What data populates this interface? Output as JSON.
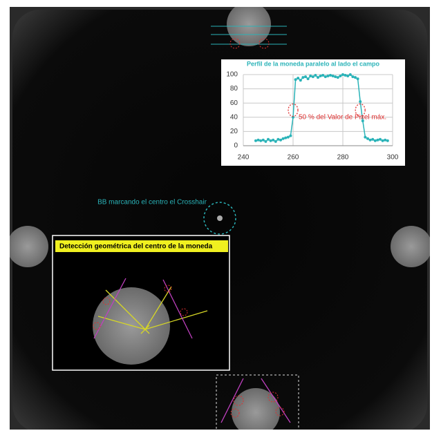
{
  "annotations": {
    "bb_label": "BB  marcando el centro el Crosshair",
    "detection_label": "Detección geométrica del centro de la moneda"
  },
  "chart_data": {
    "type": "line",
    "title": "Perfil de la moneda paralelo al lado el campo",
    "annotation": "50 % del  Valor de Pixel máx.",
    "x": [
      245,
      246,
      247,
      248,
      249,
      250,
      251,
      252,
      253,
      254,
      255,
      256,
      257,
      258,
      259,
      260,
      261,
      262,
      263,
      264,
      265,
      266,
      267,
      268,
      269,
      270,
      271,
      272,
      273,
      274,
      275,
      276,
      277,
      278,
      279,
      280,
      281,
      282,
      283,
      284,
      285,
      286,
      287,
      288,
      289,
      290,
      291,
      292,
      293,
      294,
      295,
      296,
      297,
      298
    ],
    "series": [
      {
        "name": "Perfil",
        "color": "#2ab3b8",
        "values": [
          7,
          8,
          7,
          8,
          6,
          9,
          7,
          8,
          6,
          9,
          8,
          10,
          11,
          12,
          14,
          40,
          93,
          95,
          92,
          96,
          97,
          94,
          98,
          97,
          99,
          96,
          98,
          99,
          97,
          98,
          99,
          98,
          97,
          96,
          98,
          100,
          99,
          98,
          100,
          97,
          96,
          94,
          62,
          35,
          12,
          10,
          8,
          9,
          7,
          8,
          9,
          7,
          8,
          7
        ]
      }
    ],
    "xlim": [
      240,
      300
    ],
    "xticks": [
      240,
      260,
      280,
      300
    ],
    "ylim": [
      0,
      100
    ],
    "yticks": [
      0,
      20,
      40,
      60,
      80,
      100
    ],
    "grid": true
  }
}
